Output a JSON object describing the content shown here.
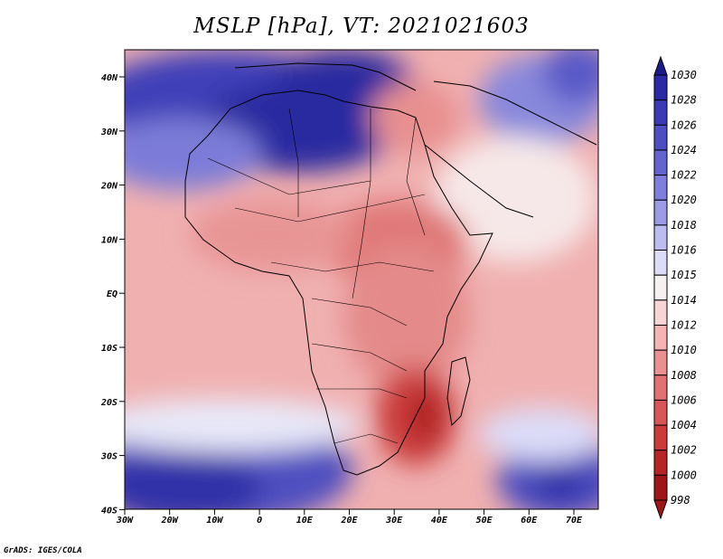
{
  "title": "MSLP [hPa], VT: 2021021603",
  "credit": "GrADS: IGES/COLA",
  "lon_ticks": [
    "30W",
    "20W",
    "10W",
    "0",
    "10E",
    "20E",
    "30E",
    "40E",
    "50E",
    "60E",
    "70E"
  ],
  "lat_ticks": [
    "40N",
    "30N",
    "20N",
    "10N",
    "EQ",
    "10S",
    "20S",
    "30S",
    "40S"
  ],
  "colorbar": {
    "levels": [
      "1030",
      "1028",
      "1026",
      "1024",
      "1022",
      "1020",
      "1018",
      "1016",
      "1015",
      "1014",
      "1012",
      "1010",
      "1008",
      "1006",
      "1004",
      "1002",
      "1000",
      "998"
    ],
    "colors": [
      "#1a1a8c",
      "#2a2aa8",
      "#3a3ab8",
      "#4e4ec4",
      "#6464d0",
      "#7e7edc",
      "#9c9ce6",
      "#bcbcf0",
      "#dcdcf8",
      "#f6f0f0",
      "#f8d4d4",
      "#f4b4b4",
      "#ea9090",
      "#e27272",
      "#da5656",
      "#cc3a3a",
      "#b82424",
      "#a01616"
    ]
  }
}
